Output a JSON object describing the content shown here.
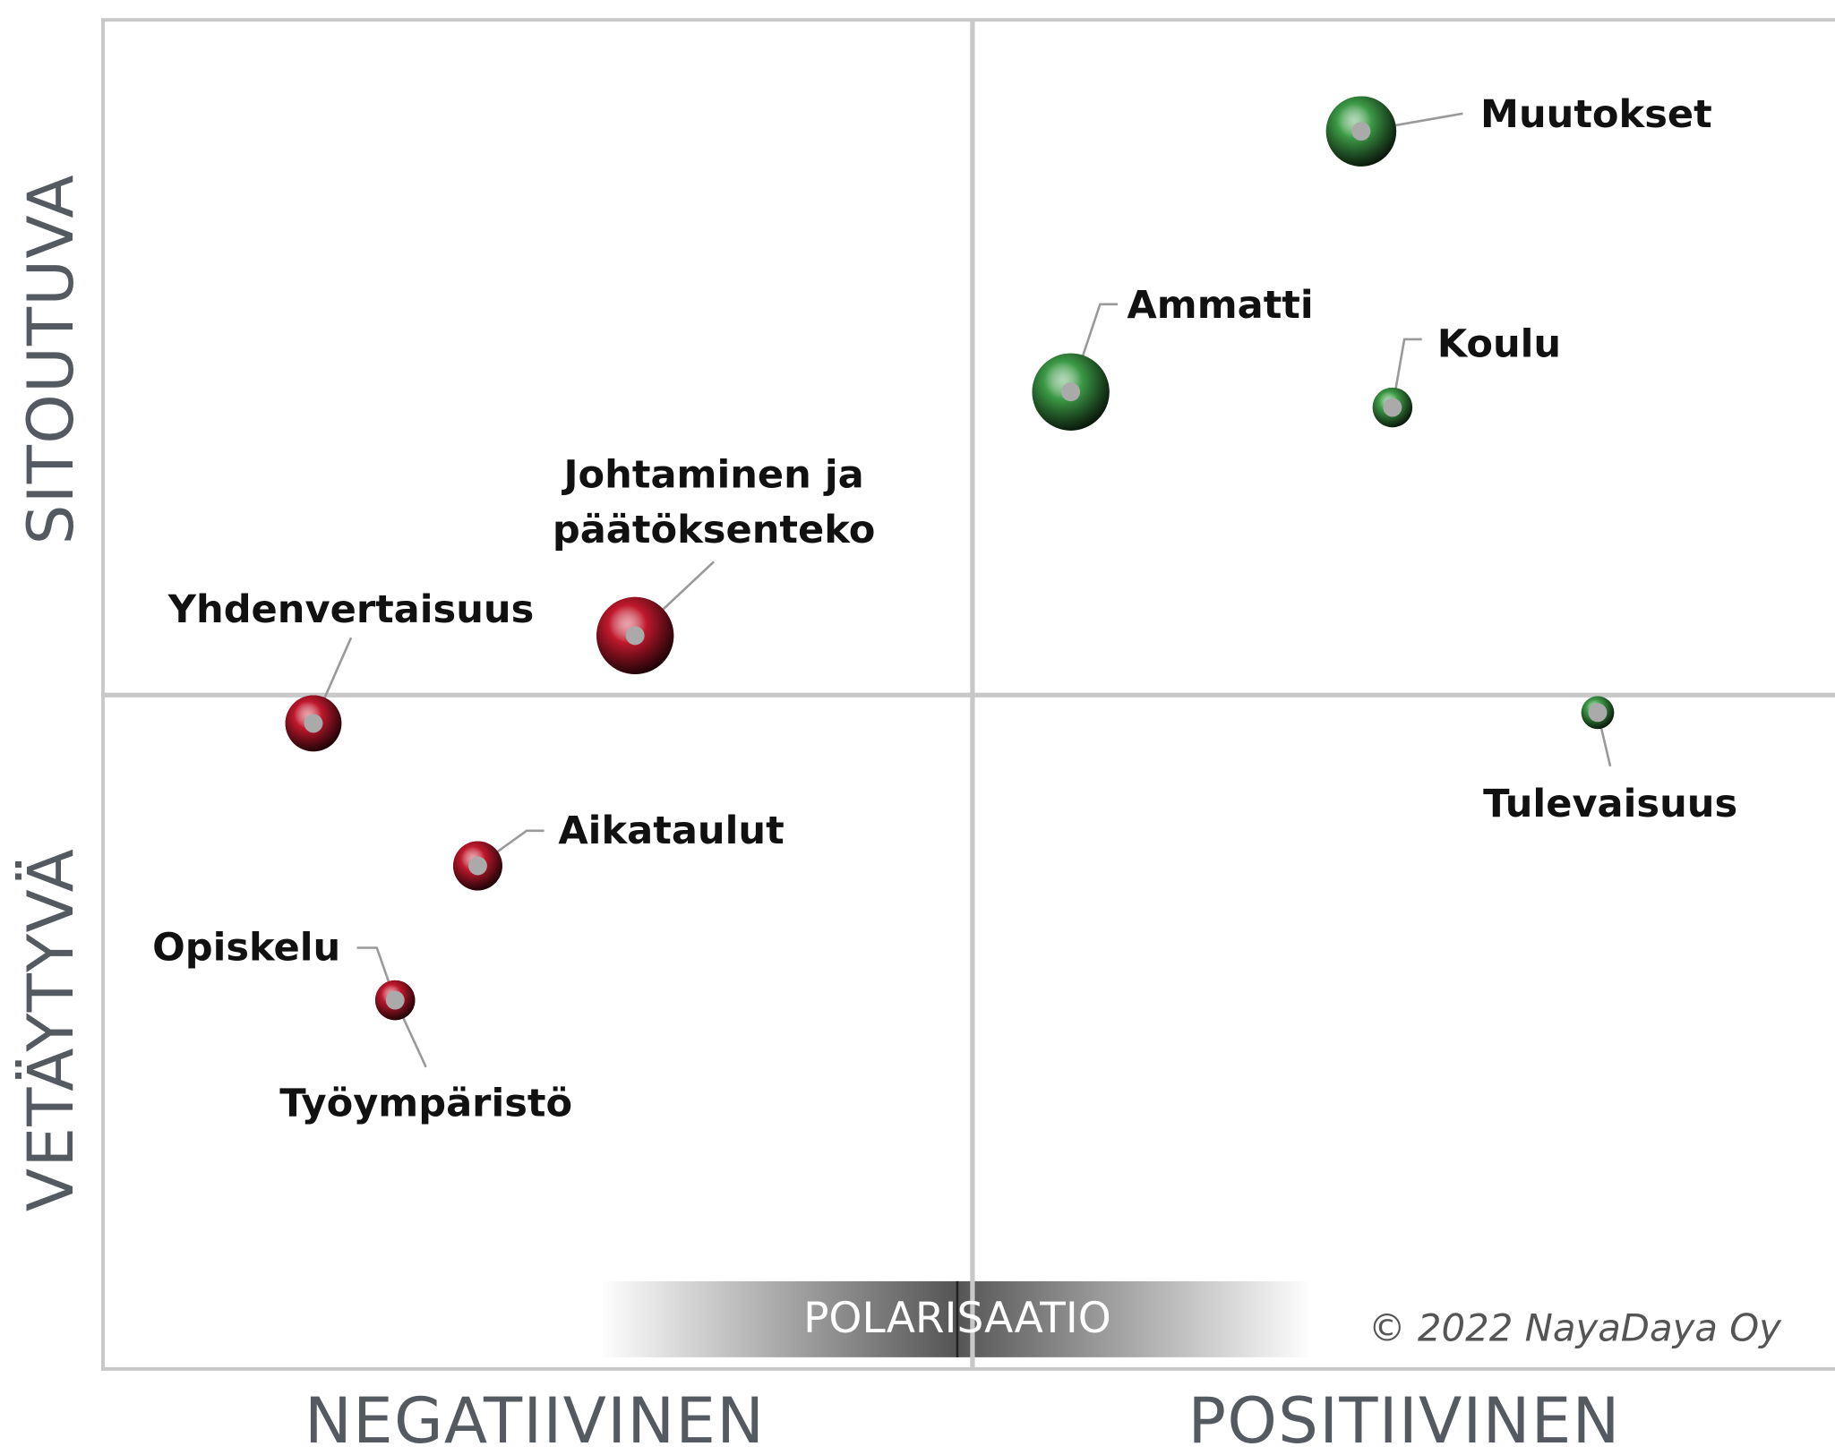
{
  "chart_data": {
    "type": "bubble",
    "y_label_top": "SITOUTUVA",
    "y_label_bottom": "VETÄYTYVÄ",
    "x_label_left": "NEGATIIVINEN",
    "x_label_right": "POSITIIVINEN",
    "annotation_center": "POLARISAATIO",
    "annotation_copyright": "© 2022 NayaDaya Oy",
    "xlim": [
      -1,
      1
    ],
    "ylim": [
      -1,
      1
    ],
    "series": [
      {
        "color": "#3c9a46",
        "labels": [
          "Muutokset",
          "Ammatti",
          "Koulu",
          "Tulevaisuus"
        ],
        "x": [
          0.447,
          0.113,
          0.483,
          0.719
        ],
        "y": [
          0.835,
          0.449,
          0.426,
          -0.026
        ],
        "sizes": [
          30,
          33,
          17,
          14
        ]
      },
      {
        "color": "#c0182c",
        "labels": [
          [
            "Johtaminen ja",
            "päätöksenteko"
          ],
          "Yhdenvertaisuus",
          "Aikataulut",
          "Opiskelu",
          "Työympäristö"
        ],
        "x": [
          -0.388,
          -0.758,
          -0.569,
          -0.664,
          -0.664
        ],
        "y": [
          0.088,
          -0.042,
          -0.253,
          -0.452,
          -0.452
        ],
        "sizes": [
          33,
          24,
          21,
          17,
          17
        ]
      }
    ]
  }
}
